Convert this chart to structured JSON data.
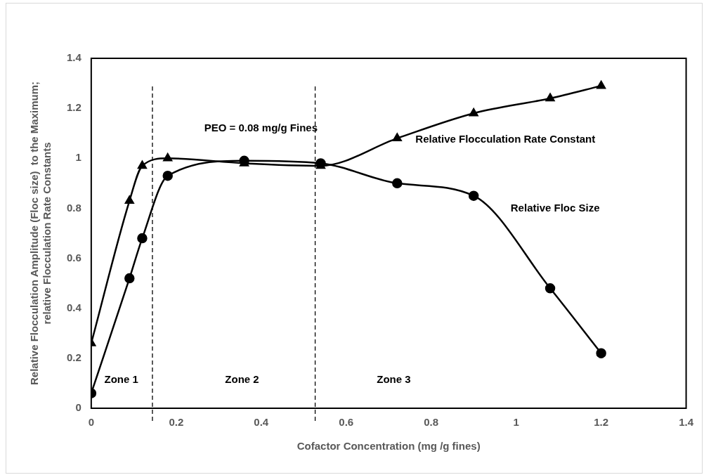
{
  "chart_data": {
    "type": "line",
    "xlabel": "Cofactor Concentration (mg /g fines)",
    "ylabel": "Relative Flocculation Amplitude (Floc size)  to the Maximum; relative Flocculation Rate Constants",
    "x": [
      0,
      0.09,
      0.12,
      0.18,
      0.36,
      0.54,
      0.72,
      0.9,
      1.08,
      1.2
    ],
    "series": [
      {
        "name": "Relative Flocculation Rate Constant",
        "color": "#000000",
        "marker": "triangle",
        "values": [
          0.26,
          0.83,
          0.97,
          1.0,
          0.98,
          0.97,
          1.08,
          1.18,
          1.24,
          1.29
        ]
      },
      {
        "name": "Relative Floc Size",
        "color": "#000000",
        "marker": "circle",
        "values": [
          0.06,
          0.52,
          0.68,
          0.93,
          0.99,
          0.98,
          0.9,
          0.85,
          0.48,
          0.22
        ]
      }
    ],
    "xlim": [
      0,
      1.4
    ],
    "xticks": [
      0,
      0.2,
      0.4,
      0.6,
      0.8,
      1,
      1.2,
      1.4
    ],
    "ylim": [
      0,
      1.4
    ],
    "yticks": [
      0,
      0.2,
      0.4,
      0.6,
      0.8,
      1,
      1.2,
      1.4
    ],
    "grid": false,
    "legend": false,
    "line_style": "solid",
    "ref_lines": [
      {
        "axis": "x",
        "value": 0.144,
        "line_style": "dashed",
        "color": "#000000"
      },
      {
        "axis": "x",
        "value": 0.527,
        "line_style": "dashed",
        "color": "#000000"
      }
    ],
    "annotations": [
      "Zone 1",
      "Zone 2",
      "Zone 3",
      "PEO = 0.08 mg/g Fines"
    ]
  }
}
